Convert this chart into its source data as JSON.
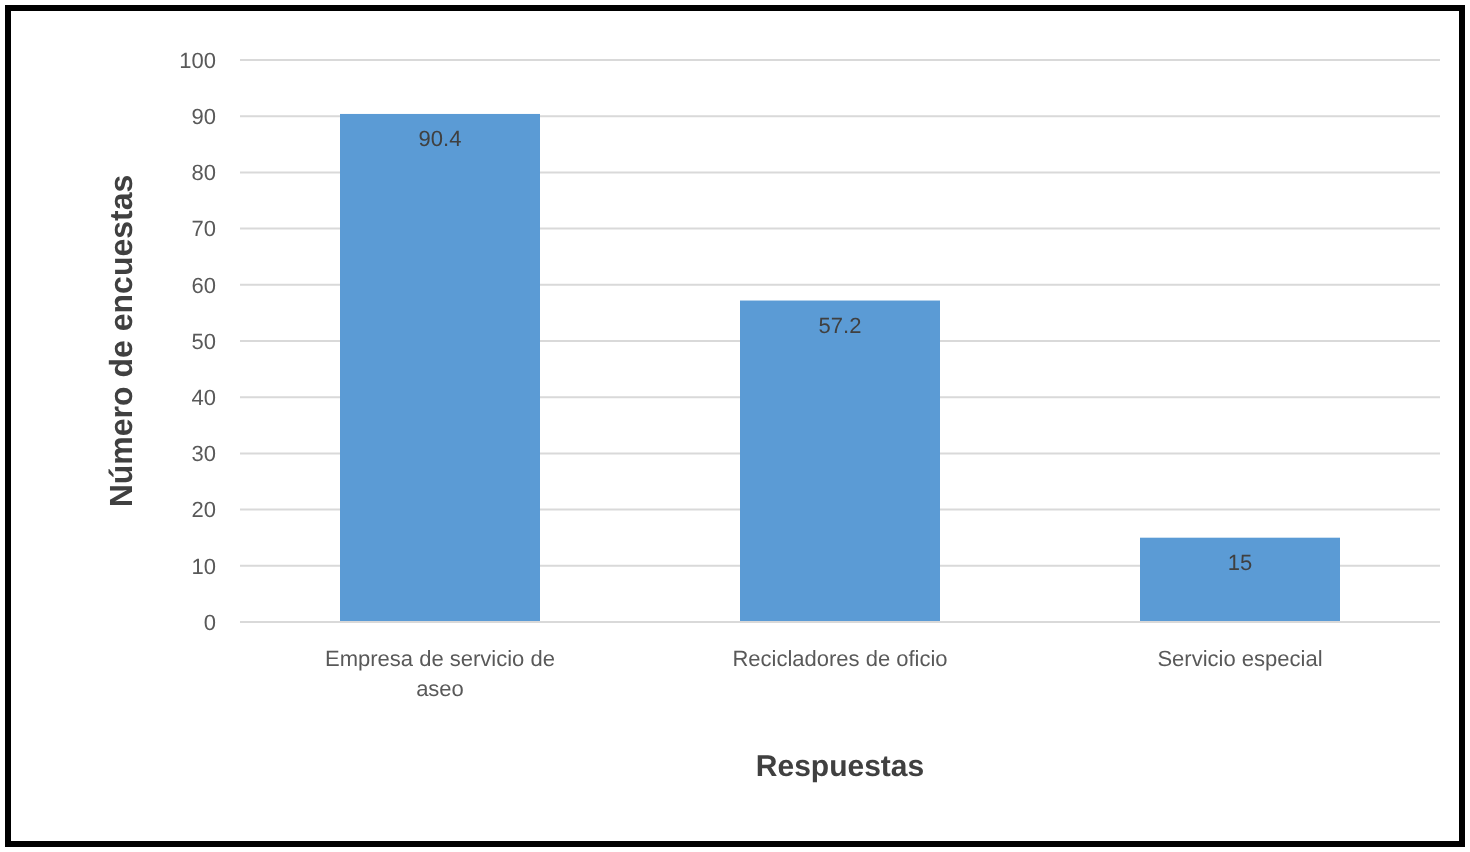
{
  "chart_data": {
    "type": "bar",
    "xlabel": "Respuestas",
    "ylabel": "Número de encuestas",
    "categories": [
      "Empresa de servicio de aseo",
      "Recicladores de oficio",
      "Servicio especial"
    ],
    "values": [
      90.4,
      57.2,
      15
    ],
    "color": "#5b9bd5",
    "data_labels": true,
    "grid": "y",
    "ylim": [
      0,
      100
    ],
    "yticks": [
      0,
      10,
      20,
      30,
      40,
      50,
      60,
      70,
      80,
      90,
      100
    ]
  }
}
